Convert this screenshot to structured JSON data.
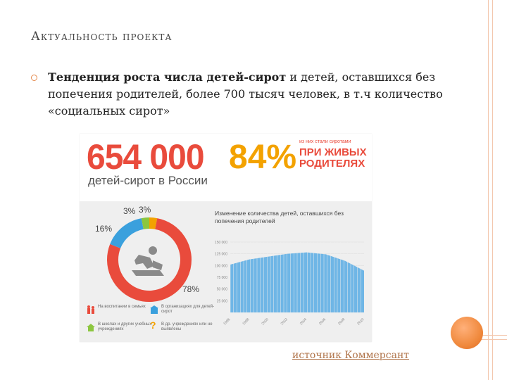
{
  "slide": {
    "title": "Актуальность проекта",
    "bullet_bold": "Тенденция роста числа детей-сирот",
    "bullet_rest": " и детей, оставшихся без попечения родителей,  более 700 тысяч человек, в т.ч количество «социальных сирот»",
    "source": "источник Коммерсант"
  },
  "infographic": {
    "big_number": "654 000",
    "big_subtitle": "детей-сирот в России",
    "percent": "84%",
    "percent_small": "из них стали сиротами",
    "percent_big_line1": "ПРИ ЖИВЫХ",
    "percent_big_line2": "РОДИТЕЛЯХ",
    "donut": {
      "segments": [
        {
          "value": 78,
          "label": "78%",
          "color": "#e94b3c"
        },
        {
          "value": 16,
          "label": "16%",
          "color": "#3aa0dd"
        },
        {
          "value": 3,
          "label": "3%",
          "color": "#8cc63f"
        },
        {
          "value": 3,
          "label": "3%",
          "color": "#f3a200"
        }
      ]
    },
    "legend": [
      {
        "text": "На воспитании в семьях",
        "icon": "family-icon",
        "color": "#e94b3c"
      },
      {
        "text": "В организациях для детей-сирот",
        "icon": "building-icon",
        "color": "#3aa0dd"
      },
      {
        "text": "В школах и других учебных учреждениях",
        "icon": "school-icon",
        "color": "#8cc63f"
      },
      {
        "text": "В др. учреждениях или не выявлены",
        "icon": "question-icon",
        "color": "#f3a200"
      }
    ]
  },
  "chart_data": {
    "type": "area",
    "title": "Изменение количества детей, оставшихся без попечения родителей",
    "x": [
      "1996",
      "1998",
      "2000",
      "2002",
      "2004",
      "2006",
      "2008",
      "2010"
    ],
    "values": [
      102000,
      113000,
      119000,
      125000,
      128000,
      124000,
      110000,
      89000
    ],
    "yticks": [
      "150 000",
      "125 000",
      "100 000",
      "75 000",
      "50 000",
      "25 000"
    ],
    "ylim": [
      0,
      150000
    ],
    "color": "#6fb6e6"
  }
}
